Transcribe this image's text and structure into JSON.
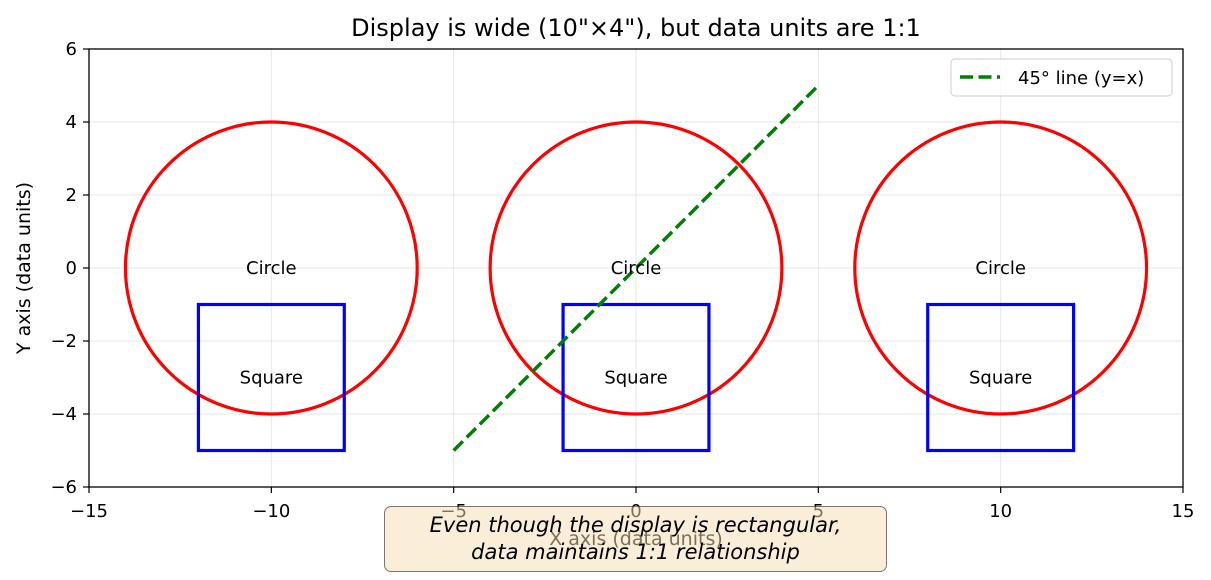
{
  "chart_data": {
    "type": "scatter",
    "title": "Display is wide (10\"×4\"), but data units are 1:1",
    "xlabel": "X axis (data units)",
    "ylabel": "Y axis (data units)",
    "xlim": [
      -15,
      15
    ],
    "ylim": [
      -6,
      6
    ],
    "aspect": "equal",
    "grid": true,
    "legend_position": "top-right",
    "x_ticks": [
      -15,
      -10,
      -5,
      0,
      5,
      10,
      15
    ],
    "y_ticks": [
      -6,
      -4,
      -2,
      0,
      2,
      4,
      6
    ],
    "x_tick_labels": [
      "−15",
      "−10",
      "−5",
      "0",
      "5",
      "10",
      "15"
    ],
    "y_tick_labels": [
      "−6",
      "−4",
      "−2",
      "0",
      "2",
      "4",
      "6"
    ],
    "circles": [
      {
        "center": [
          -10,
          0
        ],
        "radius": 4,
        "label": "Circle",
        "color": "#ff0000"
      },
      {
        "center": [
          0,
          0
        ],
        "radius": 4,
        "label": "Circle",
        "color": "#ff0000"
      },
      {
        "center": [
          10,
          0
        ],
        "radius": 4,
        "label": "Circle",
        "color": "#ff0000"
      }
    ],
    "squares": [
      {
        "corner": [
          -12,
          -5
        ],
        "side": 4,
        "label": "Square",
        "label_at": [
          -10,
          -3
        ],
        "color": "#0000ff"
      },
      {
        "corner": [
          -2,
          -5
        ],
        "side": 4,
        "label": "Square",
        "label_at": [
          0,
          -3
        ],
        "color": "#0000ff"
      },
      {
        "corner": [
          8,
          -5
        ],
        "side": 4,
        "label": "Square",
        "label_at": [
          10,
          -3
        ],
        "color": "#0000ff"
      }
    ],
    "series": [
      {
        "name": "45° line (y=x)",
        "x": [
          -5,
          5
        ],
        "y": [
          -5,
          5
        ],
        "color": "#008000",
        "style": "dashed"
      }
    ],
    "annotation": {
      "lines": [
        "Even though the display is rectangular,",
        "data maintains 1:1 relationship"
      ],
      "background": "#f5deb3"
    }
  }
}
